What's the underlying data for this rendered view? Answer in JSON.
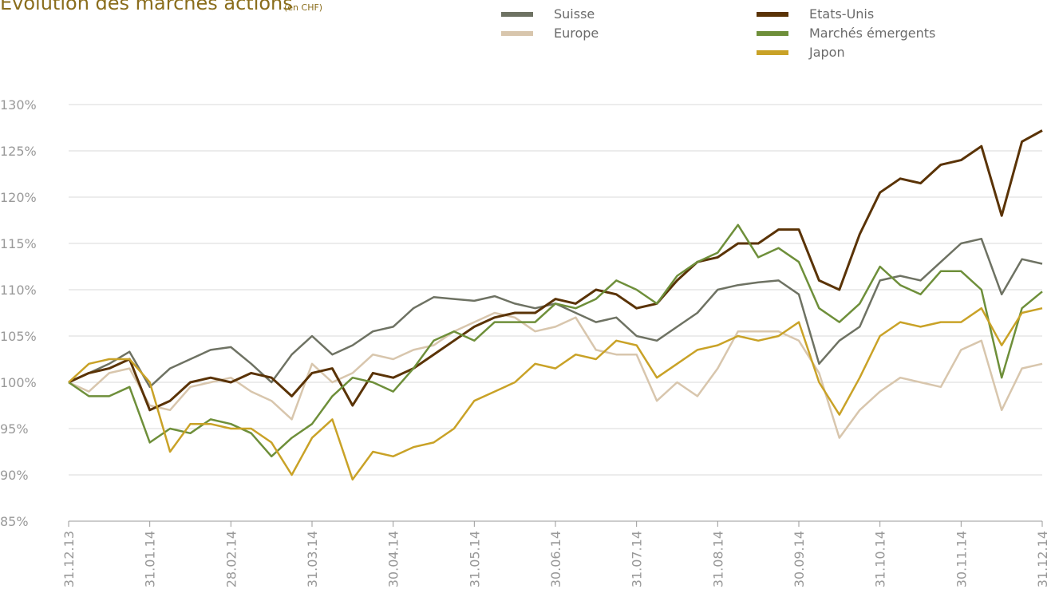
{
  "chart_data": {
    "type": "line",
    "title": "Évolution des marchés actions",
    "subtitle": "(en CHF)",
    "categories": [
      "31.12.13",
      null,
      null,
      null,
      "31.01.14",
      null,
      null,
      null,
      "28.02.14",
      null,
      null,
      null,
      "31.03.14",
      null,
      null,
      null,
      "30.04.14",
      null,
      null,
      null,
      "31.05.14",
      null,
      null,
      null,
      "30.06.14",
      null,
      null,
      null,
      "31.07.14",
      null,
      null,
      null,
      "31.08.14",
      null,
      null,
      null,
      "30.09.14",
      null,
      null,
      null,
      "31.10.14",
      null,
      null,
      null,
      "30.11.14",
      null,
      null,
      null,
      "31.12.14"
    ],
    "ylim": [
      85,
      130
    ],
    "yticks": [
      {
        "value": 85,
        "label": "85%"
      },
      {
        "value": 90,
        "label": "90%"
      },
      {
        "value": 95,
        "label": "95%"
      },
      {
        "value": 100,
        "label": "100%"
      },
      {
        "value": 105,
        "label": "105%"
      },
      {
        "value": 110,
        "label": "110%"
      },
      {
        "value": 115,
        "label": "115%"
      },
      {
        "value": 120,
        "label": "120%"
      },
      {
        "value": 125,
        "label": "125%"
      },
      {
        "value": 130,
        "label": "130%"
      }
    ],
    "grid": true,
    "series": [
      {
        "name": "Suisse",
        "color": "#6e7263",
        "values": [
          100,
          101,
          102,
          103.3,
          99.5,
          101.5,
          102.5,
          103.5,
          103.8,
          102,
          100,
          103,
          105,
          103,
          104,
          105.5,
          106,
          108,
          109.2,
          109,
          108.8,
          109.3,
          108.5,
          108,
          108.5,
          107.5,
          106.5,
          107,
          105,
          104.5,
          106,
          107.5,
          110,
          110.5,
          110.8,
          111,
          109.5,
          102,
          104.5,
          106,
          111,
          111.5,
          111,
          113,
          115,
          115.5,
          109.5,
          113.3,
          112.8
        ]
      },
      {
        "name": "Europe",
        "color": "#d8c6ad",
        "values": [
          100,
          99,
          101,
          101.5,
          97.5,
          97,
          99.5,
          100,
          100.5,
          99,
          98,
          96,
          102,
          100,
          101,
          103,
          102.5,
          103.5,
          104,
          105.5,
          106.5,
          107.5,
          107,
          105.5,
          106,
          107,
          103.5,
          103,
          103,
          98,
          100,
          98.5,
          101.5,
          105.5,
          105.5,
          105.5,
          104.5,
          101,
          94,
          97,
          99,
          100.5,
          100,
          99.5,
          103.5,
          104.5,
          97,
          101.5,
          102
        ]
      },
      {
        "name": "Etats-Unis",
        "color": "#5a3306",
        "values": [
          100,
          101,
          101.5,
          102.5,
          97,
          98,
          100,
          100.5,
          100,
          101,
          100.5,
          98.5,
          101,
          101.5,
          97.5,
          101,
          100.5,
          101.5,
          103,
          104.5,
          106,
          107,
          107.5,
          107.5,
          109,
          108.5,
          110,
          109.5,
          108,
          108.5,
          111,
          113,
          113.5,
          115,
          115,
          116.5,
          116.5,
          111,
          110,
          116,
          120.5,
          122,
          121.5,
          123.5,
          124,
          125.5,
          118,
          126,
          127.2
        ]
      },
      {
        "name": "Marchés émergents",
        "color": "#6e8f3a",
        "values": [
          100,
          98.5,
          98.5,
          99.5,
          93.5,
          95,
          94.5,
          96,
          95.5,
          94.5,
          92,
          94,
          95.5,
          98.5,
          100.5,
          100,
          99,
          101.5,
          104.5,
          105.5,
          104.5,
          106.5,
          106.5,
          106.5,
          108.5,
          108,
          109,
          111,
          110,
          108.5,
          111.5,
          113,
          114,
          117,
          113.5,
          114.5,
          113,
          108,
          106.5,
          108.5,
          112.5,
          110.5,
          109.5,
          112,
          112,
          110,
          100.5,
          108,
          109.8
        ]
      },
      {
        "name": "Japon",
        "color": "#c9a227",
        "values": [
          100,
          102,
          102.5,
          102.5,
          100,
          92.5,
          95.5,
          95.5,
          95,
          95,
          93.5,
          90,
          94,
          96,
          89.5,
          92.5,
          92,
          93,
          93.5,
          95,
          98,
          99,
          100,
          102,
          101.5,
          103,
          102.5,
          104.5,
          104,
          100.5,
          102,
          103.5,
          104,
          105,
          104.5,
          105,
          106.5,
          100,
          96.5,
          100.5,
          105,
          106.5,
          106,
          106.5,
          106.5,
          108,
          104,
          107.5,
          108
        ]
      }
    ]
  }
}
